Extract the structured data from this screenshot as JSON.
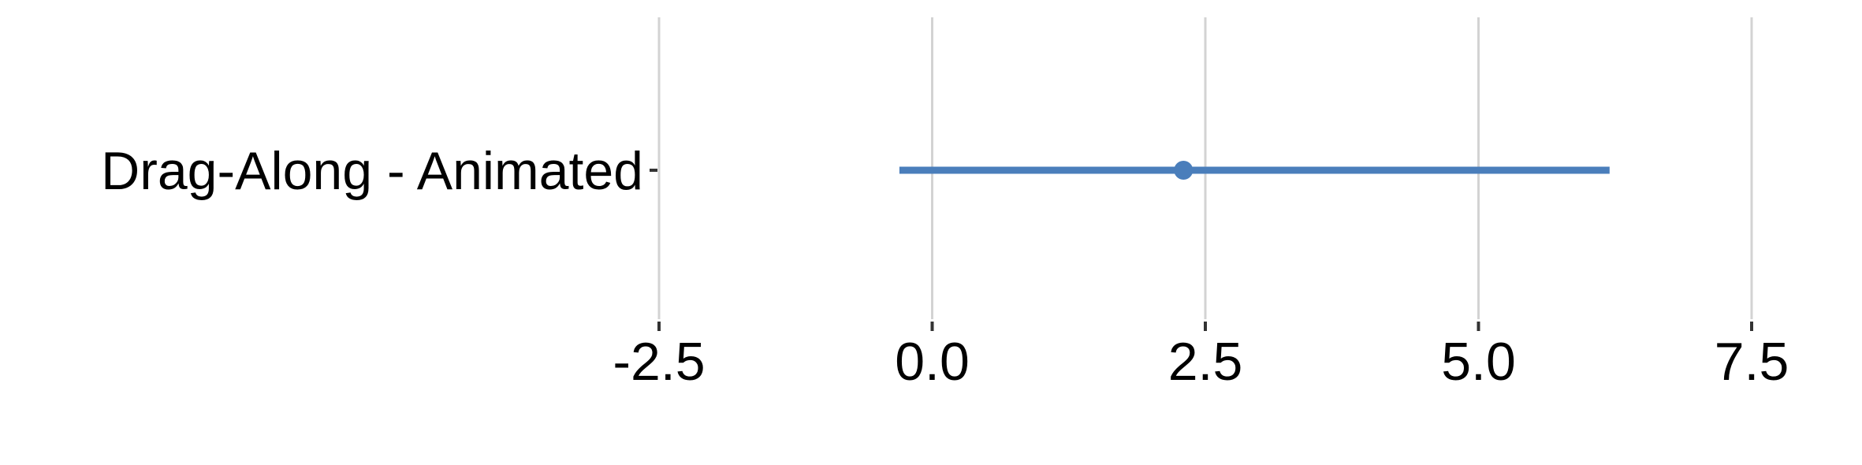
{
  "chart_data": {
    "type": "forest",
    "title": "",
    "xlabel": "",
    "ylabel": "",
    "xlim": [
      -2.5,
      7.5
    ],
    "x_ticks": [
      "-2.5",
      "0.0",
      "2.5",
      "5.0",
      "7.5"
    ],
    "x_tick_values": [
      -2.5,
      0.0,
      2.5,
      5.0,
      7.5
    ],
    "categories": [
      "Drag-Along - Animated"
    ],
    "series": [
      {
        "estimate": 2.3,
        "lower": -0.3,
        "upper": 6.2
      }
    ],
    "grid": true,
    "legend": "none",
    "color": "#4a7ebb",
    "grid_color": "#d3d3d3",
    "tick_color": "#333333"
  }
}
